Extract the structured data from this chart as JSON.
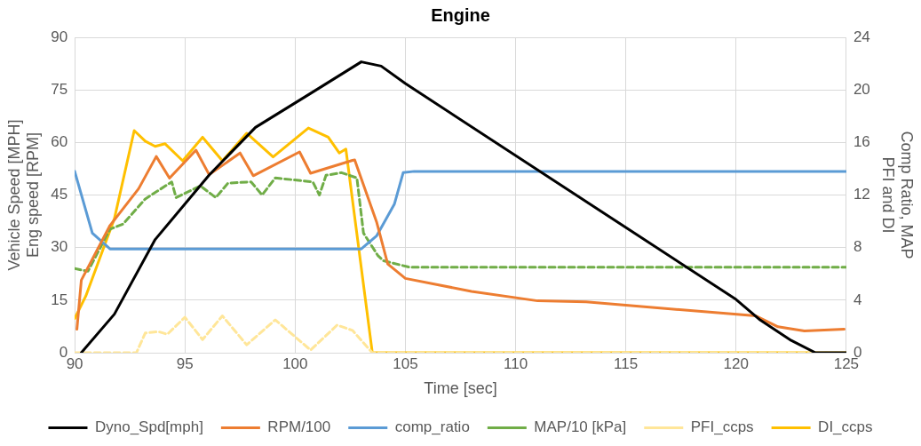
{
  "chart_data": {
    "type": "line",
    "title": "Engine",
    "xlabel": "Time [sec]",
    "ylabel": "Vehicle Speed [MPH]\nEng speed [RPM]",
    "y2label": "Comp Ratio, MAP\nPFI and DI",
    "xlim": [
      90,
      125
    ],
    "xticks": [
      90,
      95,
      100,
      105,
      110,
      115,
      120,
      125
    ],
    "ylim": [
      0,
      90
    ],
    "yticks": [
      0,
      15,
      30,
      45,
      60,
      75,
      90
    ],
    "y2lim": [
      0,
      24
    ],
    "y2ticks": [
      0,
      4,
      8,
      12,
      16,
      20,
      24
    ],
    "grid": true,
    "legend": "bottom",
    "marker": "none",
    "line_style": "solid",
    "series": [
      {
        "name": "Dyno_Spd[mph]",
        "color": "#000000",
        "x": [
          90.3,
          91.8,
          93.65,
          96.1,
          98.2,
          100.7,
          103,
          103.9,
          105,
          120,
          121.1,
          122.5,
          123.6,
          125
        ],
        "values": [
          0,
          11,
          32.3,
          50.7,
          64.3,
          74,
          83,
          81.8,
          76.8,
          15.2,
          9.3,
          3.5,
          0,
          0
        ]
      },
      {
        "name": "RPM/100",
        "color": "#ed7d31",
        "x": [
          90.1,
          90.3,
          91.6,
          92.9,
          93.7,
          94.3,
          95.5,
          96.1,
          97.5,
          98.1,
          100.2,
          100.7,
          102.6,
          102.7,
          103.7,
          104.2,
          105,
          108,
          111,
          113.2,
          120.9,
          121.9,
          123.1,
          124.9
        ],
        "values": [
          6.7,
          20.7,
          36.3,
          46.8,
          56,
          49.8,
          57.8,
          50.8,
          57,
          50.5,
          57.3,
          51.2,
          54.9,
          55,
          37.2,
          25.3,
          21.2,
          17.5,
          14.8,
          14.5,
          10.5,
          7.4,
          6.2,
          6.7
        ]
      },
      {
        "name": "comp_ratio",
        "color": "#5b9bd5",
        "axis": "y2",
        "x": [
          90,
          90.8,
          91.6,
          103,
          103.7,
          104.5,
          104.9,
          105.4,
          125
        ],
        "values": [
          13.8,
          9.1,
          7.9,
          7.9,
          8.9,
          11.3,
          13.7,
          13.8,
          13.8
        ]
      },
      {
        "name": "MAP/10 [kPa]",
        "color": "#70ad47",
        "axis": "y2",
        "line_style": "dashed",
        "x": [
          90,
          90.6,
          91.6,
          92.2,
          93.2,
          94.4,
          94.6,
          95.7,
          96.4,
          96.95,
          98,
          98.5,
          99.1,
          100.8,
          101.1,
          101.4,
          102.1,
          102.8,
          103.1,
          103.75,
          104,
          105.2,
          108.2,
          125
        ],
        "values": [
          6.4,
          6.2,
          9.4,
          9.8,
          11.7,
          13,
          11.8,
          12.7,
          11.8,
          12.9,
          13,
          12,
          13.3,
          13,
          12,
          13.5,
          13.7,
          13.3,
          9.1,
          7.4,
          7,
          6.5,
          6.5,
          6.5
        ]
      },
      {
        "name": "PFI_ccps",
        "color": "#ffe699",
        "axis": "y2",
        "line_style": "dashed",
        "x": [
          90,
          92.8,
          93.2,
          93.8,
          94.2,
          95,
          95.8,
          96.7,
          97.8,
          99.1,
          100.7,
          101.9,
          102.6,
          103.5,
          125
        ],
        "values": [
          0,
          0,
          1.5,
          1.6,
          1.4,
          2.7,
          1,
          2.8,
          0.6,
          2.5,
          0.2,
          2.1,
          1.7,
          0,
          0
        ]
      },
      {
        "name": "DI_ccps",
        "color": "#ffc000",
        "axis": "y2",
        "x": [
          90,
          90.5,
          91.8,
          92.7,
          93.2,
          93.65,
          94.1,
          94.9,
          95.8,
          96.7,
          97.8,
          99,
          100.6,
          101.5,
          102,
          102.3,
          103.5,
          125
        ],
        "values": [
          2.6,
          4.3,
          10.2,
          16.9,
          16.1,
          15.7,
          15.9,
          14.6,
          16.4,
          14.6,
          16.7,
          14.9,
          17.1,
          16.4,
          15.2,
          15.5,
          0,
          0
        ]
      }
    ]
  }
}
